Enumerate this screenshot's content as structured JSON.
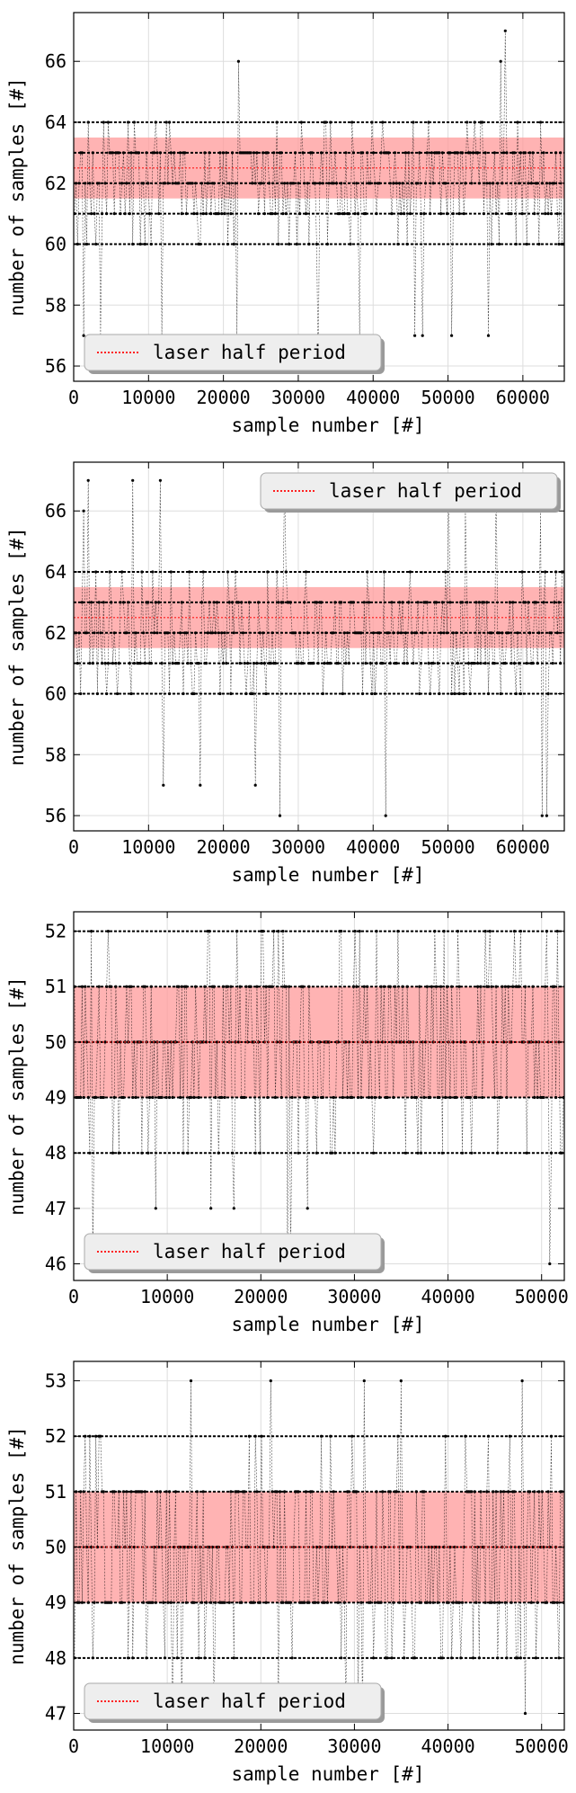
{
  "charts": [
    {
      "type": "scatter",
      "xlabel": "sample number [#]",
      "ylabel": "number of samples [#]",
      "xlim": [
        0,
        65536
      ],
      "ylim": [
        55.5,
        67.6
      ],
      "xticks": [
        0,
        10000,
        20000,
        30000,
        40000,
        50000,
        60000
      ],
      "yticks": [
        56,
        58,
        60,
        62,
        64,
        66
      ],
      "legend": {
        "label": "laser half period",
        "position": "lower-left"
      },
      "band": {
        "low": 61.5,
        "high": 63.5
      },
      "half_period_line": 62.5,
      "series": {
        "levels": [
          56,
          57,
          58,
          59,
          60,
          61,
          62,
          63,
          64,
          65,
          66,
          67
        ],
        "dense_levels": [
          61,
          62,
          63
        ],
        "mid_levels": [
          60,
          64
        ],
        "outliers_low": [
          56,
          57
        ],
        "outliers_high": [
          66,
          67
        ]
      }
    },
    {
      "type": "scatter",
      "xlabel": "sample number [#]",
      "ylabel": "number of samples [#]",
      "xlim": [
        0,
        65536
      ],
      "ylim": [
        55.5,
        67.6
      ],
      "xticks": [
        0,
        10000,
        20000,
        30000,
        40000,
        50000,
        60000
      ],
      "yticks": [
        56,
        58,
        60,
        62,
        64,
        66
      ],
      "legend": {
        "label": "laser half period",
        "position": "upper-right"
      },
      "band": {
        "low": 61.5,
        "high": 63.5
      },
      "half_period_line": 62.5,
      "series": {
        "levels": [
          56,
          57,
          58,
          59,
          60,
          61,
          62,
          63,
          64,
          65,
          66,
          67
        ],
        "dense_levels": [
          61,
          62,
          63
        ],
        "mid_levels": [
          60,
          64
        ],
        "outliers_low": [
          56,
          57
        ],
        "outliers_high": [
          66,
          67
        ]
      }
    },
    {
      "type": "scatter",
      "xlabel": "sample number [#]",
      "ylabel": "number of samples [#]",
      "xlim": [
        0,
        52428
      ],
      "ylim": [
        45.7,
        52.35
      ],
      "xticks": [
        0,
        10000,
        20000,
        30000,
        40000,
        50000
      ],
      "yticks": [
        46,
        47,
        48,
        49,
        50,
        51,
        52
      ],
      "legend": {
        "label": "laser half period",
        "position": "lower-left"
      },
      "band": {
        "low": 49.0,
        "high": 51.0
      },
      "half_period_line": 50.0,
      "series": {
        "levels": [
          46,
          47,
          48,
          49,
          50,
          51,
          52
        ],
        "dense_levels": [
          49,
          50,
          51
        ],
        "mid_levels": [
          48,
          52
        ],
        "outliers_low": [
          46,
          47
        ],
        "outliers_high": []
      }
    },
    {
      "type": "scatter",
      "xlabel": "sample number [#]",
      "ylabel": "number of samples [#]",
      "xlim": [
        0,
        52428
      ],
      "ylim": [
        46.7,
        53.35
      ],
      "xticks": [
        0,
        10000,
        20000,
        30000,
        40000,
        50000
      ],
      "yticks": [
        47,
        48,
        49,
        50,
        51,
        52,
        53
      ],
      "legend": {
        "label": "laser half period",
        "position": "lower-left"
      },
      "band": {
        "low": 49.0,
        "high": 51.0
      },
      "half_period_line": 50.0,
      "series": {
        "levels": [
          47,
          48,
          49,
          50,
          51,
          52,
          53
        ],
        "dense_levels": [
          49,
          50,
          51
        ],
        "mid_levels": [
          48,
          52
        ],
        "outliers_low": [
          47
        ],
        "outliers_high": [
          53
        ]
      }
    }
  ],
  "colors": {
    "band": "#ff9a9a",
    "half_period_line": "#ff2020",
    "data": "#000000",
    "grid": "#dddddd",
    "legend_bg": "#eeeeee"
  }
}
